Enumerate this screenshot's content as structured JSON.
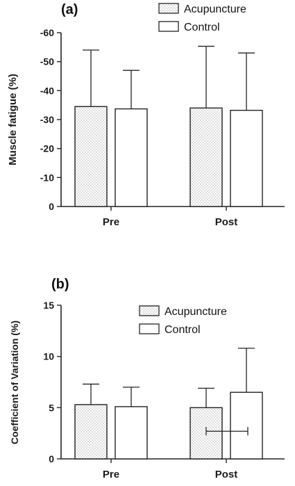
{
  "colors": {
    "axis": "#222222",
    "bar_stroke": "#222222",
    "control_fill": "#ffffff",
    "acupuncture_dot": "#8a8a8a"
  },
  "chart_data": [
    {
      "type": "bar",
      "panel_label": "(a)",
      "ylabel": "Muscle fatigue (%)",
      "categories": [
        "Pre",
        "Post"
      ],
      "ylim": [
        0,
        -60
      ],
      "yticks": [
        0,
        -10,
        -20,
        -30,
        -40,
        -50,
        -60
      ],
      "ytick_labels": [
        "0",
        "-10",
        "-20",
        "-30",
        "-40",
        "-50",
        "-60"
      ],
      "series": [
        {
          "name": "Acupuncture",
          "pattern": "dotted",
          "values": [
            -34.5,
            -34
          ],
          "error_upper": [
            -54,
            -55.3
          ]
        },
        {
          "name": "Control",
          "pattern": "open",
          "values": [
            -33.7,
            -33.2
          ],
          "error_upper": [
            -47,
            -53
          ]
        }
      ],
      "legend_position": "top-right",
      "grid": false
    },
    {
      "type": "bar",
      "panel_label": "(b)",
      "ylabel": "Coefficient of Variation (%)",
      "categories": [
        "Pre",
        "Post"
      ],
      "ylim": [
        0,
        15
      ],
      "yticks": [
        0,
        5,
        10,
        15
      ],
      "ytick_labels": [
        "0",
        "5",
        "10",
        "15"
      ],
      "series": [
        {
          "name": "Acupuncture",
          "pattern": "dotted",
          "values": [
            5.3,
            5.0
          ],
          "error_upper": [
            7.3,
            6.9
          ]
        },
        {
          "name": "Control",
          "pattern": "open",
          "values": [
            5.1,
            6.5
          ],
          "error_upper": [
            7.0,
            10.8
          ]
        }
      ],
      "stray_error_bar": {
        "y": 2.7
      },
      "legend_position": "top-right",
      "grid": false
    }
  ]
}
